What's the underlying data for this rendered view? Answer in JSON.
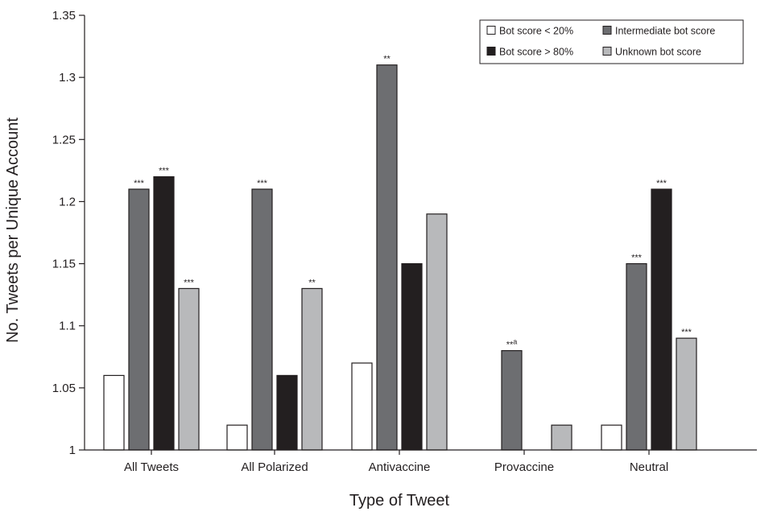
{
  "chart_data": {
    "type": "bar",
    "xlabel": "Type of Tweet",
    "ylabel": "No. Tweets per Unique Account",
    "ylim": [
      1,
      1.35
    ],
    "yticks": [
      1,
      1.05,
      1.1,
      1.15,
      1.2,
      1.25,
      1.3,
      1.35
    ],
    "ytick_labels": [
      "1",
      "1.05",
      "1.1",
      "1.15",
      "1.2",
      "1.25",
      "1.3",
      "1.35"
    ],
    "categories": [
      "All Tweets",
      "All Polarized",
      "Antivaccine",
      "Provaccine",
      "Neutral"
    ],
    "series": [
      {
        "name": "Bot score < 20%",
        "color": "#ffffff",
        "values": [
          1.06,
          1.02,
          1.07,
          null,
          1.02
        ],
        "labels": [
          "",
          "",
          "",
          "",
          ""
        ]
      },
      {
        "name": "Intermediate bot score",
        "color": "#6d6e71",
        "values": [
          1.21,
          1.21,
          1.31,
          1.08,
          1.15
        ],
        "labels": [
          "***",
          "***",
          "**",
          "**a",
          "***"
        ]
      },
      {
        "name": "Bot score > 80%",
        "color": "#231f20",
        "values": [
          1.22,
          1.06,
          1.15,
          null,
          1.21
        ],
        "labels": [
          "***",
          "",
          "",
          "",
          "***"
        ]
      },
      {
        "name": "Unknown bot score",
        "color": "#b8b9bb",
        "values": [
          1.13,
          1.13,
          1.19,
          1.02,
          1.09
        ],
        "labels": [
          "***",
          "**",
          "",
          "",
          "***"
        ]
      }
    ],
    "legend_position": "top-right",
    "grid": false
  }
}
